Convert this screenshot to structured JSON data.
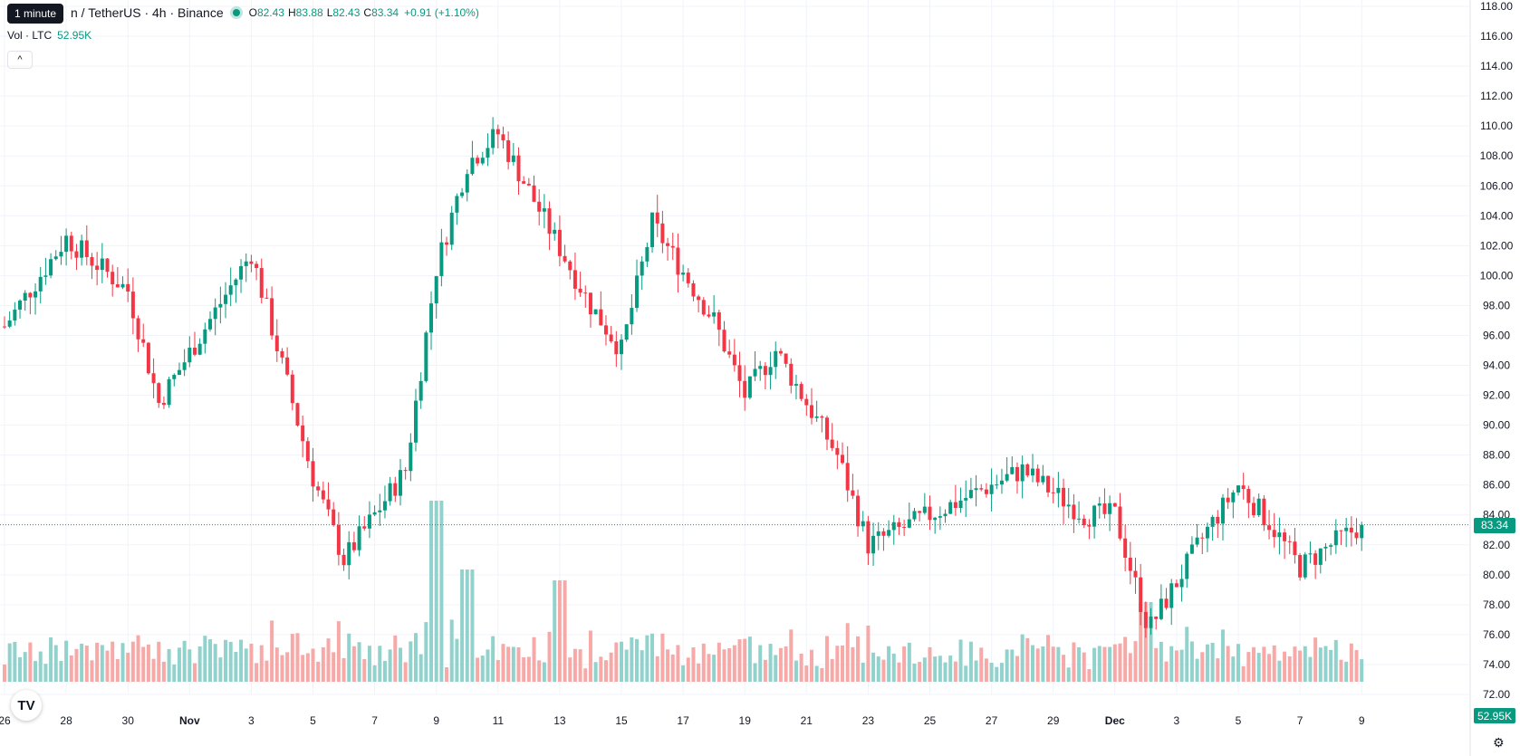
{
  "legend": {
    "symbol": "n / TetherUS · 4h · Binance",
    "open_key": "O",
    "open": "82.43",
    "high_key": "H",
    "high": "83.88",
    "low_key": "L",
    "low": "82.43",
    "close_key": "C",
    "close": "83.34",
    "change": "+0.91 (+1.10%)",
    "tooltip": "1 minute"
  },
  "volume": {
    "label": "Vol · LTC",
    "value": "52.95K"
  },
  "controls": {
    "collapse": "^"
  },
  "branding": {
    "logo": "TV"
  },
  "tags": {
    "price": "83.34",
    "volume": "52.95K"
  },
  "colors": {
    "up": "#089981",
    "down": "#f23645",
    "up_vol": "#92d2cc",
    "down_vol": "#f7a9a7",
    "grid": "#f0f3fa"
  },
  "icons": {
    "settings": "gear-icon"
  },
  "chart_data": {
    "type": "candlestick",
    "y_axis": {
      "range": [
        72,
        118
      ],
      "ticks": [
        "118.00",
        "116.00",
        "114.00",
        "112.00",
        "110.00",
        "108.00",
        "106.00",
        "104.00",
        "102.00",
        "100.00",
        "98.00",
        "96.00",
        "94.00",
        "92.00",
        "90.00",
        "88.00",
        "86.00",
        "84.00",
        "82.00",
        "80.00",
        "78.00",
        "76.00",
        "74.00",
        "72.00"
      ]
    },
    "x_axis": {
      "ticks": [
        "26",
        "28",
        "30",
        "Nov",
        "3",
        "5",
        "7",
        "9",
        "11",
        "13",
        "15",
        "17",
        "19",
        "21",
        "23",
        "25",
        "27",
        "29",
        "Dec",
        "3",
        "5",
        "7",
        "9"
      ]
    },
    "last_price": 83.34,
    "key_points": [
      {
        "date": "Oct 26",
        "price": 96.6
      },
      {
        "date": "Oct 28",
        "price": 102.5
      },
      {
        "date": "Oct 30",
        "price": 99.0
      },
      {
        "date": "Oct 31",
        "price": 91.5
      },
      {
        "date": "Nov 2",
        "price": 101.5
      },
      {
        "date": "Nov 4",
        "price": 86.5
      },
      {
        "date": "Nov 5",
        "price": 81.0
      },
      {
        "date": "Nov 7",
        "price": 87.0
      },
      {
        "date": "Nov 8",
        "price": 100.5
      },
      {
        "date": "Nov 9",
        "price": 107.5
      },
      {
        "date": "Nov 10",
        "price": 109.5
      },
      {
        "date": "Nov 13",
        "price": 98.0
      },
      {
        "date": "Nov 14",
        "price": 95.0
      },
      {
        "date": "Nov 15",
        "price": 103.5
      },
      {
        "date": "Nov 17",
        "price": 97.0
      },
      {
        "date": "Nov 18",
        "price": 92.0
      },
      {
        "date": "Nov 19",
        "price": 95.0
      },
      {
        "date": "Nov 21",
        "price": 88.0
      },
      {
        "date": "Nov 22",
        "price": 82.0
      },
      {
        "date": "Nov 25",
        "price": 85.0
      },
      {
        "date": "Nov 27",
        "price": 87.0
      },
      {
        "date": "Nov 29",
        "price": 84.0
      },
      {
        "date": "Nov 30",
        "price": 84.0
      },
      {
        "date": "Dec 1",
        "price": 77.0
      },
      {
        "date": "Dec 1",
        "price": 76.0
      },
      {
        "date": "Dec 3",
        "price": 83.0
      },
      {
        "date": "Dec 4",
        "price": 86.0
      },
      {
        "date": "Dec 5",
        "price": 83.5
      },
      {
        "date": "Dec 6",
        "price": 80.5
      },
      {
        "date": "Dec 7",
        "price": 82.0
      },
      {
        "date": "Dec 8",
        "price": 83.34
      }
    ],
    "volume_peaks": [
      {
        "date": "Nov 8",
        "relative": 1.0
      },
      {
        "date": "Nov 9",
        "relative": 0.62
      },
      {
        "date": "Nov 12",
        "relative": 0.56
      },
      {
        "date": "Dec 1",
        "relative": 0.44
      }
    ]
  }
}
